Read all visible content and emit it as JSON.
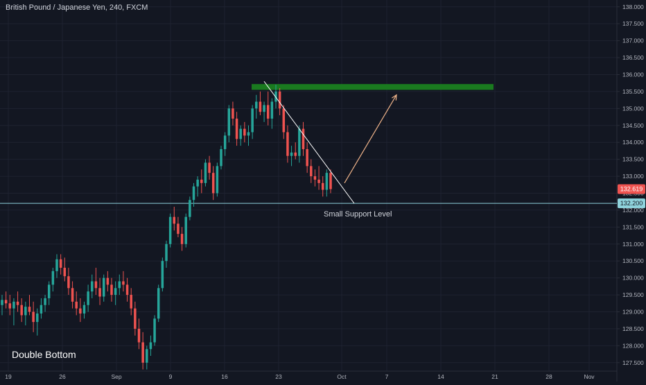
{
  "header": {
    "symbol_title": "British Pound / Japanese Yen, 240, FXCM"
  },
  "colors": {
    "background": "#131722",
    "bull": "#26a69a",
    "bear": "#ef5350",
    "grid": "#1e2230",
    "axis_text": "#b2b5be",
    "support_line": "#8fd3dc",
    "trendline": "#ffffff",
    "resistance_zone": "#1a7a1f",
    "arrow": "#f0b48a",
    "current_price_tag": "#ef5350",
    "support_price_tag": "#8fd3dc"
  },
  "annotations": {
    "support_label": "Small Support Level",
    "pattern_label": "Double Bottom",
    "current_price": "132.619",
    "support_price": "132.200",
    "resistance_zone": {
      "low": 135.55,
      "high": 135.72
    },
    "trendline": {
      "from": {
        "x": 0.0,
        "y": 135.8
      },
      "to": {
        "x": 7.0,
        "y": 132.2
      }
    },
    "arrow": {
      "from": {
        "x": 6.4,
        "y": 132.8
      },
      "to": {
        "x": 9.0,
        "y": 135.4
      }
    }
  },
  "chart_data": {
    "type": "candlestick",
    "title": "British Pound / Japanese Yen, 240, FXCM",
    "ylim": [
      127.25,
      138.2
    ],
    "x_tick_labels": [
      "19",
      "26",
      "Sep",
      "9",
      "16",
      "23",
      "Oct",
      "7",
      "14",
      "21",
      "28",
      "Nov"
    ],
    "y_tick_labels": [
      "127.500",
      "128.000",
      "128.500",
      "129.000",
      "129.500",
      "130.000",
      "130.500",
      "131.000",
      "131.500",
      "132.000",
      "132.500",
      "133.000",
      "133.500",
      "134.000",
      "134.500",
      "135.000",
      "135.500",
      "136.000",
      "136.500",
      "137.000",
      "137.500",
      "138.000"
    ],
    "support_level": 132.2,
    "current_price": 132.619,
    "candles": [
      {
        "o": 129.2,
        "h": 129.5,
        "l": 128.9,
        "c": 129.35
      },
      {
        "o": 129.35,
        "h": 129.6,
        "l": 129.1,
        "c": 129.25
      },
      {
        "o": 129.25,
        "h": 129.5,
        "l": 128.9,
        "c": 129.1
      },
      {
        "o": 129.1,
        "h": 129.4,
        "l": 128.6,
        "c": 129.3
      },
      {
        "o": 129.3,
        "h": 129.6,
        "l": 129.0,
        "c": 129.2
      },
      {
        "o": 129.2,
        "h": 129.4,
        "l": 128.7,
        "c": 128.9
      },
      {
        "o": 128.9,
        "h": 129.3,
        "l": 128.6,
        "c": 129.15
      },
      {
        "o": 129.15,
        "h": 129.5,
        "l": 128.9,
        "c": 129.0
      },
      {
        "o": 129.0,
        "h": 129.3,
        "l": 128.4,
        "c": 128.7
      },
      {
        "o": 128.7,
        "h": 129.1,
        "l": 128.3,
        "c": 128.95
      },
      {
        "o": 128.95,
        "h": 129.4,
        "l": 128.8,
        "c": 129.2
      },
      {
        "o": 129.2,
        "h": 129.5,
        "l": 129.0,
        "c": 129.4
      },
      {
        "o": 129.4,
        "h": 129.9,
        "l": 129.2,
        "c": 129.8
      },
      {
        "o": 129.8,
        "h": 130.3,
        "l": 129.6,
        "c": 130.2
      },
      {
        "o": 130.2,
        "h": 130.7,
        "l": 130.0,
        "c": 130.55
      },
      {
        "o": 130.55,
        "h": 130.7,
        "l": 130.1,
        "c": 130.3
      },
      {
        "o": 130.3,
        "h": 130.6,
        "l": 129.9,
        "c": 130.05
      },
      {
        "o": 130.05,
        "h": 130.3,
        "l": 129.5,
        "c": 129.7
      },
      {
        "o": 129.7,
        "h": 129.9,
        "l": 129.1,
        "c": 129.3
      },
      {
        "o": 129.3,
        "h": 129.6,
        "l": 128.9,
        "c": 129.1
      },
      {
        "o": 129.1,
        "h": 129.4,
        "l": 128.7,
        "c": 128.95
      },
      {
        "o": 128.95,
        "h": 129.3,
        "l": 128.8,
        "c": 129.2
      },
      {
        "o": 129.2,
        "h": 129.8,
        "l": 129.0,
        "c": 129.6
      },
      {
        "o": 129.6,
        "h": 130.1,
        "l": 129.4,
        "c": 129.9
      },
      {
        "o": 129.9,
        "h": 130.3,
        "l": 129.5,
        "c": 129.7
      },
      {
        "o": 129.7,
        "h": 130.0,
        "l": 129.2,
        "c": 129.45
      },
      {
        "o": 129.45,
        "h": 130.1,
        "l": 129.3,
        "c": 130.0
      },
      {
        "o": 130.0,
        "h": 130.2,
        "l": 129.6,
        "c": 129.8
      },
      {
        "o": 129.8,
        "h": 130.0,
        "l": 129.3,
        "c": 129.5
      },
      {
        "o": 129.5,
        "h": 129.9,
        "l": 129.2,
        "c": 129.7
      },
      {
        "o": 129.7,
        "h": 130.1,
        "l": 129.5,
        "c": 129.9
      },
      {
        "o": 129.9,
        "h": 130.2,
        "l": 129.6,
        "c": 129.8
      },
      {
        "o": 129.8,
        "h": 130.0,
        "l": 129.3,
        "c": 129.5
      },
      {
        "o": 129.5,
        "h": 129.7,
        "l": 128.9,
        "c": 129.1
      },
      {
        "o": 129.1,
        "h": 129.3,
        "l": 128.3,
        "c": 128.5
      },
      {
        "o": 128.5,
        "h": 128.8,
        "l": 127.9,
        "c": 128.1
      },
      {
        "o": 128.1,
        "h": 128.4,
        "l": 127.3,
        "c": 127.5
      },
      {
        "o": 127.5,
        "h": 128.0,
        "l": 127.3,
        "c": 127.9
      },
      {
        "o": 127.9,
        "h": 128.3,
        "l": 127.7,
        "c": 128.1
      },
      {
        "o": 128.1,
        "h": 128.9,
        "l": 128.0,
        "c": 128.8
      },
      {
        "o": 128.8,
        "h": 129.8,
        "l": 128.7,
        "c": 129.7
      },
      {
        "o": 129.7,
        "h": 130.6,
        "l": 129.6,
        "c": 130.5
      },
      {
        "o": 130.5,
        "h": 131.1,
        "l": 130.3,
        "c": 131.0
      },
      {
        "o": 131.0,
        "h": 131.9,
        "l": 130.9,
        "c": 131.8
      },
      {
        "o": 131.8,
        "h": 132.1,
        "l": 131.4,
        "c": 131.6
      },
      {
        "o": 131.6,
        "h": 131.8,
        "l": 131.2,
        "c": 131.3
      },
      {
        "o": 131.3,
        "h": 131.5,
        "l": 130.8,
        "c": 131.0
      },
      {
        "o": 131.0,
        "h": 131.9,
        "l": 130.9,
        "c": 131.8
      },
      {
        "o": 131.8,
        "h": 132.4,
        "l": 131.7,
        "c": 132.3
      },
      {
        "o": 132.3,
        "h": 132.8,
        "l": 132.1,
        "c": 132.7
      },
      {
        "o": 132.7,
        "h": 133.0,
        "l": 132.4,
        "c": 132.9
      },
      {
        "o": 132.9,
        "h": 133.2,
        "l": 132.5,
        "c": 132.8
      },
      {
        "o": 132.8,
        "h": 133.5,
        "l": 132.7,
        "c": 133.4
      },
      {
        "o": 133.4,
        "h": 133.6,
        "l": 132.9,
        "c": 133.1
      },
      {
        "o": 133.1,
        "h": 133.3,
        "l": 132.3,
        "c": 132.5
      },
      {
        "o": 132.5,
        "h": 133.4,
        "l": 132.4,
        "c": 133.3
      },
      {
        "o": 133.3,
        "h": 133.9,
        "l": 133.2,
        "c": 133.8
      },
      {
        "o": 133.8,
        "h": 134.3,
        "l": 133.6,
        "c": 134.2
      },
      {
        "o": 134.2,
        "h": 135.1,
        "l": 134.0,
        "c": 135.0
      },
      {
        "o": 135.0,
        "h": 135.2,
        "l": 134.5,
        "c": 134.7
      },
      {
        "o": 134.7,
        "h": 134.9,
        "l": 133.9,
        "c": 134.1
      },
      {
        "o": 134.1,
        "h": 134.5,
        "l": 133.9,
        "c": 134.4
      },
      {
        "o": 134.4,
        "h": 134.6,
        "l": 134.0,
        "c": 134.2
      },
      {
        "o": 134.2,
        "h": 134.5,
        "l": 133.9,
        "c": 134.3
      },
      {
        "o": 134.3,
        "h": 135.1,
        "l": 134.1,
        "c": 135.0
      },
      {
        "o": 135.0,
        "h": 135.4,
        "l": 134.7,
        "c": 135.2
      },
      {
        "o": 135.2,
        "h": 135.5,
        "l": 134.8,
        "c": 134.9
      },
      {
        "o": 134.9,
        "h": 135.2,
        "l": 134.6,
        "c": 135.1
      },
      {
        "o": 135.1,
        "h": 135.5,
        "l": 134.5,
        "c": 134.7
      },
      {
        "o": 134.7,
        "h": 135.3,
        "l": 134.4,
        "c": 135.2
      },
      {
        "o": 135.2,
        "h": 135.7,
        "l": 135.0,
        "c": 135.5
      },
      {
        "o": 135.5,
        "h": 135.6,
        "l": 134.8,
        "c": 135.0
      },
      {
        "o": 135.0,
        "h": 135.1,
        "l": 134.1,
        "c": 134.3
      },
      {
        "o": 134.3,
        "h": 134.5,
        "l": 133.4,
        "c": 133.6
      },
      {
        "o": 133.6,
        "h": 133.9,
        "l": 133.3,
        "c": 133.7
      },
      {
        "o": 133.7,
        "h": 134.0,
        "l": 133.5,
        "c": 133.6
      },
      {
        "o": 133.6,
        "h": 134.5,
        "l": 133.4,
        "c": 134.4
      },
      {
        "o": 134.4,
        "h": 134.6,
        "l": 133.6,
        "c": 133.8
      },
      {
        "o": 133.8,
        "h": 134.0,
        "l": 133.1,
        "c": 133.3
      },
      {
        "o": 133.3,
        "h": 133.5,
        "l": 132.8,
        "c": 133.0
      },
      {
        "o": 133.0,
        "h": 133.2,
        "l": 132.7,
        "c": 132.9
      },
      {
        "o": 132.9,
        "h": 133.3,
        "l": 132.6,
        "c": 132.8
      },
      {
        "o": 132.8,
        "h": 133.0,
        "l": 132.4,
        "c": 132.6
      },
      {
        "o": 132.6,
        "h": 133.2,
        "l": 132.4,
        "c": 133.1
      },
      {
        "o": 133.1,
        "h": 133.2,
        "l": 132.5,
        "c": 132.62
      }
    ]
  }
}
